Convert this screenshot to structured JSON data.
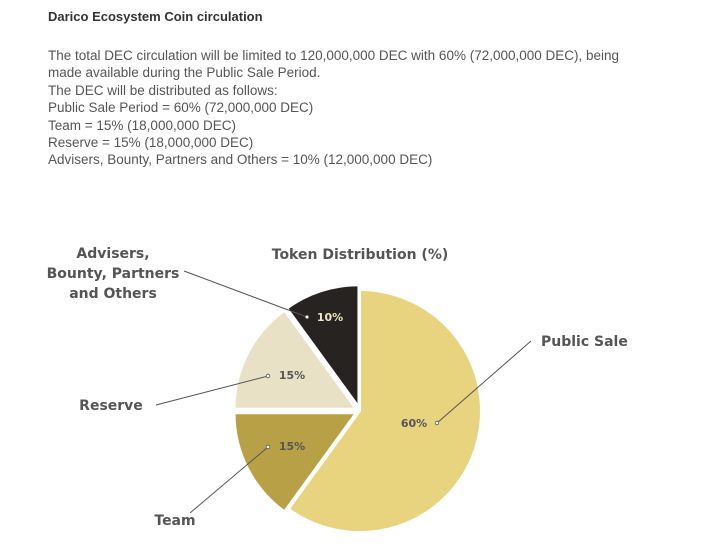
{
  "heading": "Darico Ecosystem Coin circulation",
  "paragraph": {
    "line1": "The total DEC circulation will be limited to 120,000,000 DEC  with 60% (72,000,000 DEC), being",
    "line2": "made available during the Public Sale Period.",
    "line3": "The DEC will be distributed as follows:",
    "line4": "Public Sale Period = 60% (72,000,000 DEC)",
    "line5": "Team = 15% (18,000,000 DEC)",
    "line6": "Reserve = 15% (18,000,000 DEC)",
    "line7": "Advisers, Bounty, Partners and Others = 10% (12,000,000 DEC)"
  },
  "chart_data": {
    "type": "pie",
    "title": "Token Distribution (%)",
    "categories": [
      "Public Sale",
      "Team",
      "Reserve",
      "Advisers, Bounty, Partners and Others"
    ],
    "values": [
      60,
      15,
      15,
      10
    ],
    "value_labels": [
      "60%",
      "15%",
      "15%",
      "10%"
    ],
    "category_label_lines": [
      [
        "Public Sale"
      ],
      [
        "Team"
      ],
      [
        "Reserve"
      ],
      [
        "Advisers,",
        "Bounty, Partners",
        "and Others"
      ]
    ],
    "colors": [
      "#e8d37f",
      "#b8a046",
      "#e9e1c6",
      "#262320"
    ],
    "value_label_colors": [
      "#555555",
      "#555555",
      "#555555",
      "#f0e6c0"
    ]
  }
}
